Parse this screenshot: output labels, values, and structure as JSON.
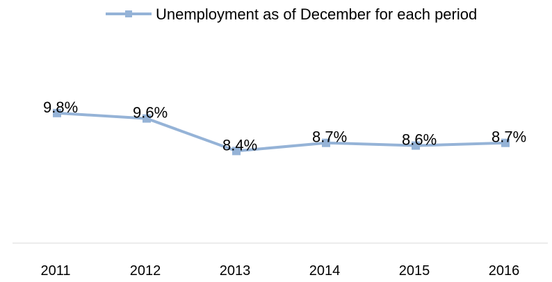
{
  "chart_data": {
    "type": "line",
    "categories": [
      "2011",
      "2012",
      "2013",
      "2014",
      "2015",
      "2016"
    ],
    "series": [
      {
        "name": "Unemployment as of December for each period",
        "values": [
          9.8,
          9.6,
          8.4,
          8.7,
          8.6,
          8.7
        ],
        "labels": [
          "9.8%",
          "9.6%",
          "8.4%",
          "8.7%",
          "8.6%",
          "8.7%"
        ],
        "color": "#95B3D7",
        "marker": "square"
      }
    ],
    "title": "",
    "xlabel": "",
    "ylabel": "",
    "ylim": [
      5,
      13
    ],
    "grid": false,
    "legend": "top"
  }
}
